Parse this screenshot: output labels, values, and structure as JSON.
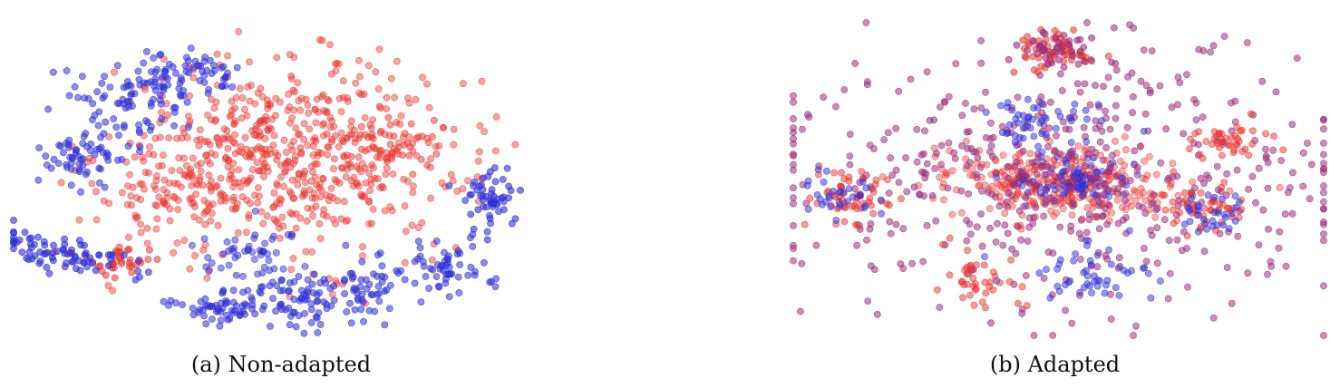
{
  "chart_data": [
    {
      "type": "scatter",
      "caption": "(a) Non-adapted",
      "colors": {
        "source": "#e8332f",
        "target": "#2f2fd6"
      },
      "clusters": [
        {
          "color": "source",
          "cx": 0.04,
          "cy": 0.18,
          "sx": 0.34,
          "sy": 0.3,
          "n": 620,
          "alpha": 0.45
        },
        {
          "color": "source",
          "cx": 0.4,
          "cy": 0.28,
          "sx": 0.12,
          "sy": 0.1,
          "n": 50,
          "alpha": 0.5
        },
        {
          "color": "source",
          "cx": -0.58,
          "cy": -0.48,
          "sx": 0.07,
          "sy": 0.05,
          "n": 35,
          "alpha": 0.55
        },
        {
          "color": "source",
          "cx": -0.35,
          "cy": -0.05,
          "sx": 0.15,
          "sy": 0.12,
          "n": 60,
          "alpha": 0.45
        },
        {
          "color": "target",
          "cx": -0.55,
          "cy": 0.55,
          "sx": 0.1,
          "sy": 0.12,
          "n": 80,
          "alpha": 0.55
        },
        {
          "color": "target",
          "cx": -0.72,
          "cy": 0.2,
          "sx": 0.08,
          "sy": 0.1,
          "n": 60,
          "alpha": 0.55
        },
        {
          "color": "target",
          "cx": -0.32,
          "cy": 0.72,
          "sx": 0.09,
          "sy": 0.07,
          "n": 60,
          "alpha": 0.55
        },
        {
          "color": "target",
          "cx": 0.82,
          "cy": -0.08,
          "sx": 0.06,
          "sy": 0.09,
          "n": 55,
          "alpha": 0.6
        },
        {
          "color": "target",
          "cx": 0.65,
          "cy": -0.55,
          "sx": 0.09,
          "sy": 0.09,
          "n": 60,
          "alpha": 0.55
        },
        {
          "color": "target",
          "cx": 0.12,
          "cy": -0.75,
          "sx": 0.12,
          "sy": 0.1,
          "n": 80,
          "alpha": 0.55
        },
        {
          "color": "target",
          "cx": -0.22,
          "cy": -0.78,
          "sx": 0.1,
          "sy": 0.06,
          "n": 60,
          "alpha": 0.55
        },
        {
          "color": "target",
          "cx": -0.12,
          "cy": -0.42,
          "sx": 0.1,
          "sy": 0.1,
          "n": 50,
          "alpha": 0.5
        },
        {
          "color": "target",
          "cx": 0.35,
          "cy": -0.62,
          "sx": 0.06,
          "sy": 0.1,
          "n": 40,
          "alpha": 0.55
        },
        {
          "color": "target",
          "cx": -0.8,
          "cy": -0.45,
          "sx": 0.16,
          "sy": 0.05,
          "n": 80,
          "alpha": 0.6,
          "tilt": -0.35
        }
      ]
    },
    {
      "type": "scatter",
      "caption": "(b) Adapted",
      "colors": {
        "source": "#e8332f",
        "target": "#2f2fd6",
        "mixed": "#9c2f7a"
      },
      "clusters": [
        {
          "color": "source",
          "cx": 0.0,
          "cy": -0.02,
          "sx": 0.22,
          "sy": 0.12,
          "n": 320,
          "alpha": 0.4
        },
        {
          "color": "target",
          "cx": 0.05,
          "cy": 0.0,
          "sx": 0.1,
          "sy": 0.08,
          "n": 90,
          "alpha": 0.45
        },
        {
          "color": "mixed",
          "cx": 0.0,
          "cy": 0.0,
          "sx": 0.55,
          "sy": 0.42,
          "n": 520,
          "alpha": 0.55
        },
        {
          "color": "source",
          "cx": -0.02,
          "cy": 0.82,
          "sx": 0.08,
          "sy": 0.07,
          "n": 60,
          "alpha": 0.55
        },
        {
          "color": "mixed",
          "cx": 0.0,
          "cy": 0.82,
          "sx": 0.09,
          "sy": 0.06,
          "n": 40,
          "alpha": 0.6
        },
        {
          "color": "source",
          "cx": -0.8,
          "cy": -0.1,
          "sx": 0.08,
          "sy": 0.09,
          "n": 50,
          "alpha": 0.5
        },
        {
          "color": "target",
          "cx": -0.82,
          "cy": -0.1,
          "sx": 0.07,
          "sy": 0.08,
          "n": 30,
          "alpha": 0.5
        },
        {
          "color": "source",
          "cx": 0.55,
          "cy": -0.2,
          "sx": 0.08,
          "sy": 0.1,
          "n": 45,
          "alpha": 0.5
        },
        {
          "color": "target",
          "cx": 0.55,
          "cy": -0.22,
          "sx": 0.06,
          "sy": 0.08,
          "n": 30,
          "alpha": 0.5
        },
        {
          "color": "source",
          "cx": 0.62,
          "cy": 0.25,
          "sx": 0.08,
          "sy": 0.06,
          "n": 40,
          "alpha": 0.5
        },
        {
          "color": "target",
          "cx": -0.05,
          "cy": 0.38,
          "sx": 0.12,
          "sy": 0.08,
          "n": 50,
          "alpha": 0.5
        },
        {
          "color": "target",
          "cx": 0.1,
          "cy": -0.6,
          "sx": 0.15,
          "sy": 0.1,
          "n": 50,
          "alpha": 0.5
        },
        {
          "color": "source",
          "cx": -0.3,
          "cy": -0.65,
          "sx": 0.1,
          "sy": 0.08,
          "n": 40,
          "alpha": 0.5
        }
      ]
    }
  ]
}
